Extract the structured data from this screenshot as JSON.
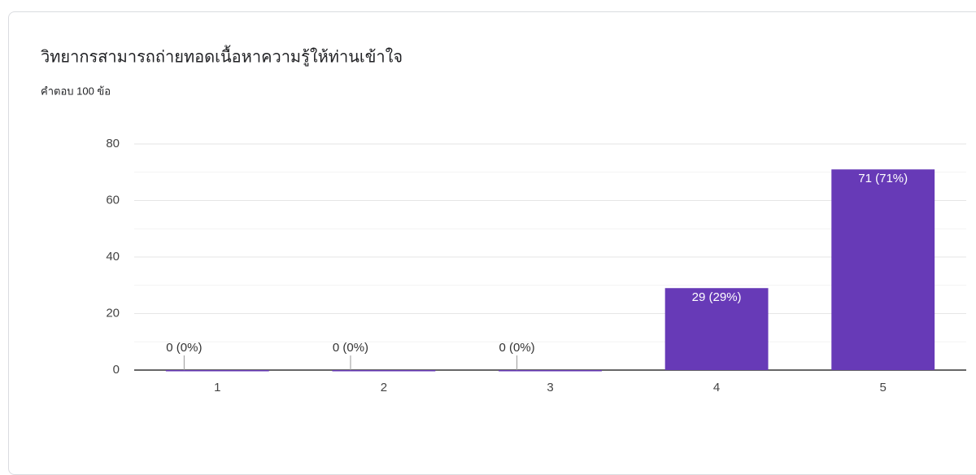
{
  "chart_data": {
    "type": "bar",
    "title": "วิทยากรสามารถถ่ายทอดเนื้อหาความรู้ให้ท่านเข้าใจ",
    "subtitle": "คำตอบ 100 ข้อ",
    "categories": [
      "1",
      "2",
      "3",
      "4",
      "5"
    ],
    "values": [
      0,
      0,
      0,
      29,
      71
    ],
    "value_labels": [
      "0 (0%)",
      "0 (0%)",
      "0 (0%)",
      "29 (29%)",
      "71 (71%)"
    ],
    "color": "#673ab7",
    "ylim": [
      0,
      80
    ],
    "yticks": [
      0,
      20,
      40,
      60,
      80
    ],
    "minor_yticks": [
      10,
      30,
      50,
      70
    ],
    "grid": true
  }
}
